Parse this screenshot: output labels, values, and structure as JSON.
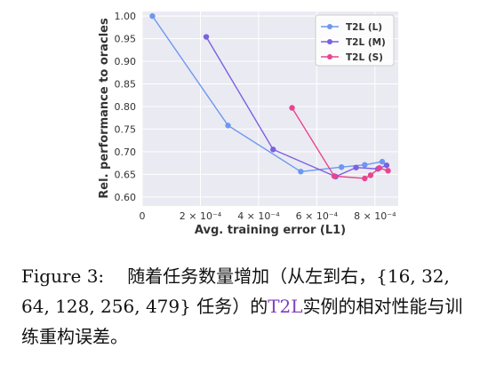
{
  "chart_data": {
    "type": "line",
    "xlabel": "Avg. training error (L1)",
    "ylabel": "Rel. performance to oracles",
    "xlim": [
      0,
      0.00088
    ],
    "ylim": [
      0.58,
      1.01
    ],
    "grid": true,
    "legend_position": "top-right",
    "x_ticks": [
      {
        "value": 0,
        "label": "0"
      },
      {
        "value": 0.0002,
        "label": "2 × 10⁻⁴"
      },
      {
        "value": 0.0004,
        "label": "4 × 10⁻⁴"
      },
      {
        "value": 0.0006,
        "label": "6 × 10⁻⁴"
      },
      {
        "value": 0.0008,
        "label": "8 × 10⁻⁴"
      }
    ],
    "y_ticks": [
      {
        "value": 0.6,
        "label": "0.60"
      },
      {
        "value": 0.65,
        "label": "0.65"
      },
      {
        "value": 0.7,
        "label": "0.70"
      },
      {
        "value": 0.75,
        "label": "0.75"
      },
      {
        "value": 0.8,
        "label": "0.80"
      },
      {
        "value": 0.85,
        "label": "0.85"
      },
      {
        "value": 0.9,
        "label": "0.90"
      },
      {
        "value": 0.95,
        "label": "0.95"
      },
      {
        "value": 1.0,
        "label": "1.00"
      }
    ],
    "series": [
      {
        "name": "T2L (L)",
        "color": "#6d97f0",
        "x": [
          3.5e-05,
          0.000295,
          0.000545,
          0.000685,
          0.000765,
          0.000825
        ],
        "y": [
          1.0,
          0.758,
          0.656,
          0.666,
          0.671,
          0.678
        ]
      },
      {
        "name": "T2L (M)",
        "color": "#7d5fe0",
        "x": [
          0.00022,
          0.00045,
          0.000665,
          0.000735,
          0.00081,
          0.00084
        ],
        "y": [
          0.954,
          0.705,
          0.645,
          0.665,
          0.662,
          0.67
        ]
      },
      {
        "name": "T2L (S)",
        "color": "#e8458f",
        "x": [
          0.000515,
          0.00066,
          0.000765,
          0.000785,
          0.000815,
          0.000845
        ],
        "y": [
          0.797,
          0.646,
          0.641,
          0.648,
          0.664,
          0.658
        ]
      }
    ]
  },
  "caption": {
    "figure_label": "Figure 3:",
    "text_before": "随着任务数量增加（从左到右，{16, 32, 64, 128, 256, 479} 任务）的",
    "highlight": "T2L",
    "text_after": "实例的相对性能与训练重构误差。"
  }
}
